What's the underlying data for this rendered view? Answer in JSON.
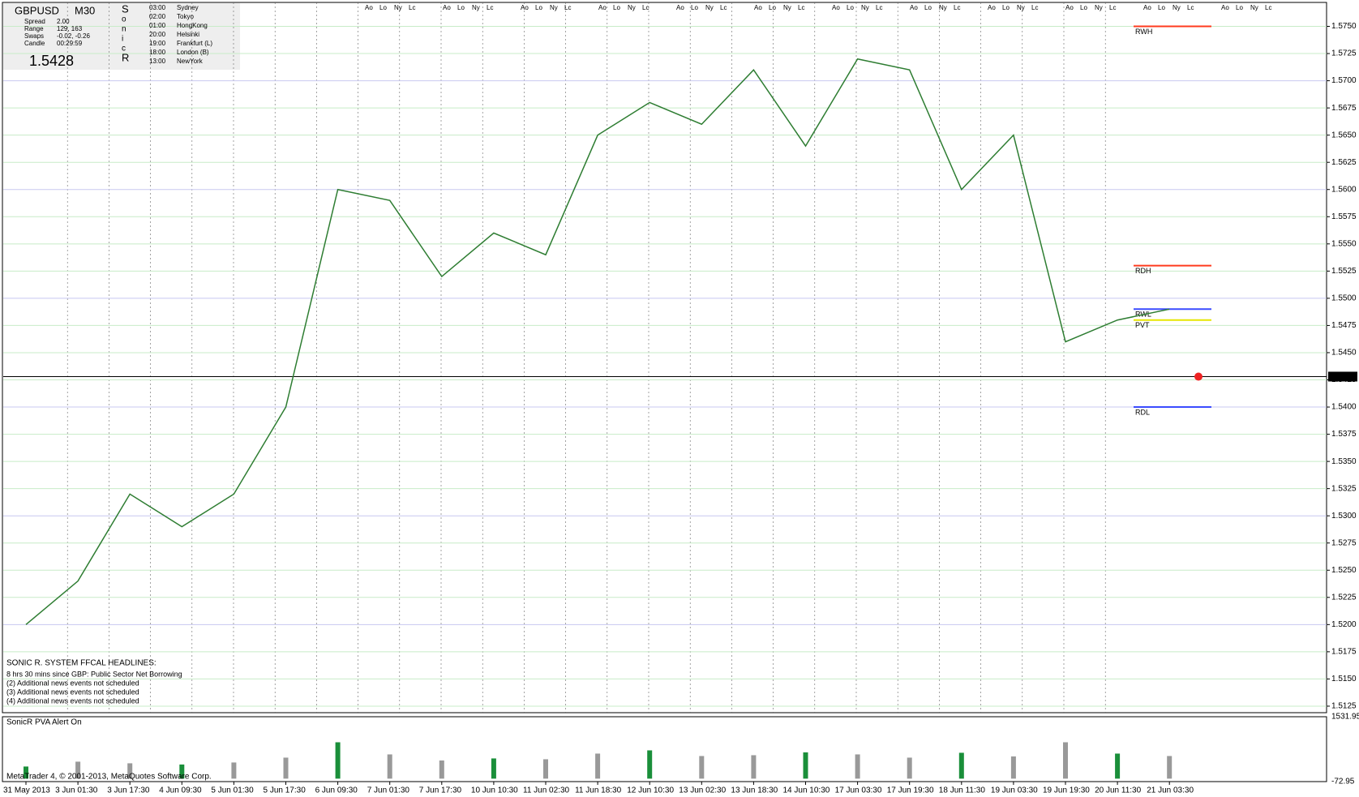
{
  "chart_data": {
    "type": "line",
    "symbol": "GBPUSD",
    "timeframe": "M30",
    "info": [
      [
        "Spread",
        "2.00"
      ],
      [
        "Range",
        "129, 163"
      ],
      [
        "Swaps",
        "-0.02, -0.26"
      ],
      [
        "Candle",
        "00:29:59"
      ]
    ],
    "brand_letters": [
      "S",
      "o",
      "n",
      "i",
      "c",
      "R"
    ],
    "sessions_table": [
      [
        "03:00",
        "Sydney"
      ],
      [
        "02:00",
        "Tokyo"
      ],
      [
        "01:00",
        "HongKong"
      ],
      [
        "20:00",
        "Helsinki"
      ],
      [
        "19:00",
        "Frankfurt  (L)"
      ],
      [
        "18:00",
        "London  (B)"
      ],
      [
        "13:00",
        "NewYork"
      ]
    ],
    "session_marks": [
      "Ao",
      "Lo",
      "Ny",
      "Lc"
    ],
    "headline_title": "SONIC R. SYSTEM  FFCAL HEADLINES:",
    "headlines": [
      "8 hrs 30 mins since GBP: Public Sector Net Borrowing",
      "(2)  Additional news events not scheduled",
      "(3)  Additional news events not scheduled",
      "(4)  Additional news events not scheduled"
    ],
    "categories": [
      "31 May 2013",
      "3 Jun 01:30",
      "3 Jun 17:30",
      "4 Jun 09:30",
      "5 Jun 01:30",
      "5 Jun 17:30",
      "6 Jun 09:30",
      "7 Jun 01:30",
      "7 Jun 17:30",
      "10 Jun 10:30",
      "11 Jun 02:30",
      "11 Jun 18:30",
      "12 Jun 10:30",
      "13 Jun 02:30",
      "13 Jun 18:30",
      "14 Jun 10:30",
      "17 Jun 03:30",
      "17 Jun 19:30",
      "18 Jun 11:30",
      "19 Jun 03:30",
      "19 Jun 19:30",
      "20 Jun 11:30",
      "21 Jun 03:30"
    ],
    "series": [
      {
        "name": "GBPUSD",
        "color": "#2e7d32",
        "values": [
          1.52,
          1.524,
          1.532,
          1.529,
          1.532,
          1.54,
          1.56,
          1.559,
          1.552,
          1.556,
          1.554,
          1.565,
          1.568,
          1.566,
          1.571,
          1.564,
          1.572,
          1.571,
          1.56,
          1.565,
          1.546,
          1.548,
          1.549
        ]
      }
    ],
    "current_price": 1.5428,
    "ylim": [
      1.5119,
      1.5772
    ],
    "yticks": [
      1.5125,
      {
        "value": 1.515,
        "label": "1.5150"
      },
      1.5175,
      {
        "value": 1.52,
        "label": "1.5200"
      },
      1.5225,
      {
        "value": 1.525,
        "label": "1.5250"
      },
      1.5275,
      {
        "value": 1.53,
        "label": "1.5300"
      },
      1.5325,
      {
        "value": 1.535,
        "label": "1.5350"
      },
      1.5375,
      {
        "value": 1.54,
        "label": "1.5400"
      },
      1.5425,
      {
        "value": 1.545,
        "label": "1.5450"
      },
      1.5475,
      {
        "value": 1.55,
        "label": "1.5500"
      },
      1.5525,
      {
        "value": 1.555,
        "label": "1.5550"
      },
      1.5575,
      {
        "value": 1.56,
        "label": "1.5600"
      },
      1.5625,
      {
        "value": 1.565,
        "label": "1.5650"
      },
      1.5675,
      {
        "value": 1.57,
        "label": "1.5700"
      },
      1.5725,
      {
        "value": 1.575,
        "label": "1.5750"
      }
    ],
    "levels": [
      {
        "name": "RWH",
        "value": 1.575,
        "color": "#ff3b1f"
      },
      {
        "name": "RDH",
        "value": 1.553,
        "color": "#ff3b1f"
      },
      {
        "name": "RWL",
        "value": 1.549,
        "color": "#3b4cff"
      },
      {
        "name": "PVT",
        "value": 1.548,
        "color": "#e6e600"
      },
      {
        "name": "RDL",
        "value": 1.54,
        "color": "#3b4cff"
      }
    ],
    "volume_title": "SonicR PVA   Alert On",
    "volume_ylim": [
      -72.95,
      1531.95
    ],
    "volume_yticks": [
      1531.95,
      -72.95
    ],
    "volume_values": [
      300,
      420,
      380,
      350,
      400,
      520,
      900,
      600,
      450,
      500,
      480,
      620,
      700,
      560,
      580,
      650,
      600,
      520,
      640,
      550,
      900,
      620,
      560
    ],
    "copyright": "MetaTrader 4, © 2001-2013, MetaQuotes Software Corp."
  }
}
